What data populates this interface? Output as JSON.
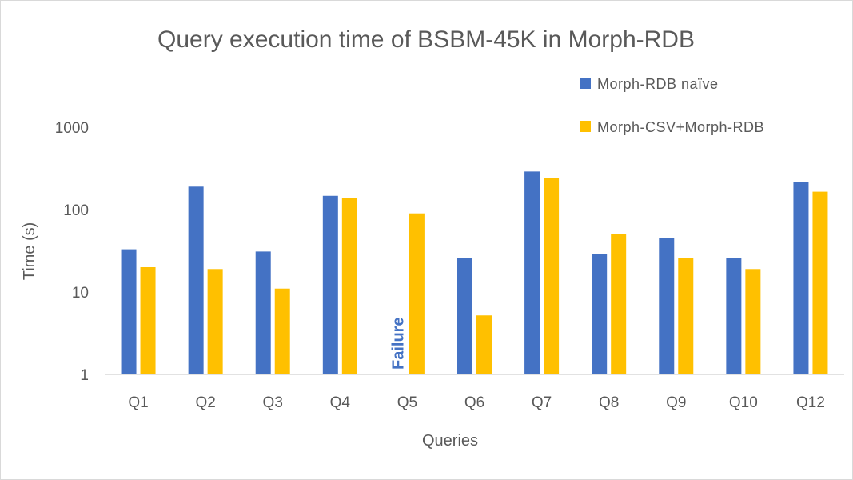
{
  "chart_data": {
    "type": "bar",
    "title": "Query execution time of BSBM-45K in Morph-RDB",
    "xlabel": "Queries",
    "ylabel": "Time (s)",
    "yscale": "log",
    "ylim": [
      1,
      1000
    ],
    "yticks": [
      1,
      10,
      100,
      1000
    ],
    "ytick_labels": [
      "1",
      "10",
      "100",
      "1000"
    ],
    "categories": [
      "Q1",
      "Q2",
      "Q3",
      "Q4",
      "Q5",
      "Q6",
      "Q7",
      "Q8",
      "Q9",
      "Q10",
      "Q12"
    ],
    "series": [
      {
        "name": "Morph-RDB naïve",
        "color": "#4472c4",
        "values": [
          33,
          190,
          31,
          147,
          null,
          26,
          290,
          29,
          45,
          26,
          215
        ]
      },
      {
        "name": "Morph-CSV+Morph-RDB",
        "color": "#ffc000",
        "values": [
          20,
          19,
          11,
          138,
          90,
          5.2,
          240,
          51,
          26,
          19,
          165
        ]
      }
    ],
    "annotations": [
      {
        "text": "Failure",
        "category": "Q5",
        "series": "Morph-RDB naïve",
        "color": "#4472c4",
        "orientation": "vertical"
      }
    ],
    "legend": {
      "position": "top-right"
    },
    "grid": false
  }
}
